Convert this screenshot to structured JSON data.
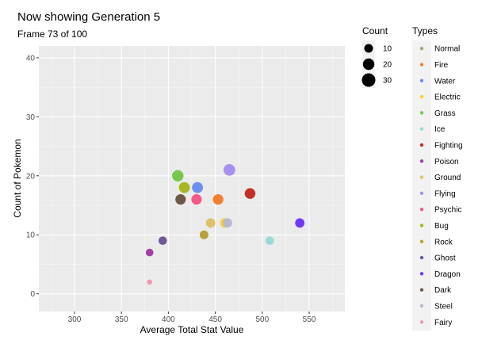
{
  "title": "Now showing Generation 5",
  "subtitle": "Frame 73 of 100",
  "chart_data": {
    "type": "scatter",
    "xlabel": "Average Total Stat Value",
    "ylabel": "Count of Pokemon",
    "xlim": [
      262,
      588
    ],
    "ylim": [
      -3,
      42
    ],
    "x_ticks": [
      300,
      350,
      400,
      450,
      500,
      550
    ],
    "y_ticks": [
      0,
      10,
      20,
      30,
      40
    ],
    "grid": true,
    "panel_background": "#ebebeb",
    "legend_position": "right",
    "size_legend": {
      "title": "Count",
      "entries": [
        {
          "label": "10",
          "value": 10
        },
        {
          "label": "20",
          "value": 20
        },
        {
          "label": "30",
          "value": 30
        }
      ]
    },
    "color_legend": {
      "title": "Types",
      "entries": [
        {
          "name": "Normal",
          "color": "#a8a878"
        },
        {
          "name": "Fire",
          "color": "#f08030"
        },
        {
          "name": "Water",
          "color": "#6890f0"
        },
        {
          "name": "Electric",
          "color": "#f8d030"
        },
        {
          "name": "Grass",
          "color": "#78c850"
        },
        {
          "name": "Ice",
          "color": "#98d8d8"
        },
        {
          "name": "Fighting",
          "color": "#c03028"
        },
        {
          "name": "Poison",
          "color": "#a040a0"
        },
        {
          "name": "Ground",
          "color": "#e0c068"
        },
        {
          "name": "Flying",
          "color": "#a890f0"
        },
        {
          "name": "Psychic",
          "color": "#f85888"
        },
        {
          "name": "Bug",
          "color": "#a8b820"
        },
        {
          "name": "Rock",
          "color": "#b8a038"
        },
        {
          "name": "Ghost",
          "color": "#705898"
        },
        {
          "name": "Dragon",
          "color": "#7038f8"
        },
        {
          "name": "Dark",
          "color": "#705848"
        },
        {
          "name": "Steel",
          "color": "#b8b8d0"
        },
        {
          "name": "Fairy",
          "color": "#ee99ac"
        }
      ]
    },
    "points": [
      {
        "type": "Flying",
        "x": 465,
        "y": 21,
        "count": 21
      },
      {
        "type": "Grass",
        "x": 410,
        "y": 20,
        "count": 20
      },
      {
        "type": "Bug",
        "x": 417,
        "y": 18,
        "count": 18
      },
      {
        "type": "Water",
        "x": 431,
        "y": 18,
        "count": 18
      },
      {
        "type": "Fighting",
        "x": 487,
        "y": 17,
        "count": 17
      },
      {
        "type": "Dark",
        "x": 413,
        "y": 16,
        "count": 16
      },
      {
        "type": "Psychic",
        "x": 430,
        "y": 16,
        "count": 16
      },
      {
        "type": "Fire",
        "x": 453,
        "y": 16,
        "count": 16
      },
      {
        "type": "Ground",
        "x": 445,
        "y": 12,
        "count": 12
      },
      {
        "type": "Electric",
        "x": 460,
        "y": 12,
        "count": 12
      },
      {
        "type": "Steel",
        "x": 463,
        "y": 12,
        "count": 12
      },
      {
        "type": "Dragon",
        "x": 540,
        "y": 12,
        "count": 12
      },
      {
        "type": "Ice",
        "x": 508,
        "y": 9,
        "count": 9
      },
      {
        "type": "Rock",
        "x": 438,
        "y": 10,
        "count": 10
      },
      {
        "type": "Ghost",
        "x": 394,
        "y": 9,
        "count": 9
      },
      {
        "type": "Poison",
        "x": 380,
        "y": 7,
        "count": 7
      },
      {
        "type": "Fairy",
        "x": 380,
        "y": 2,
        "count": 2
      }
    ]
  }
}
